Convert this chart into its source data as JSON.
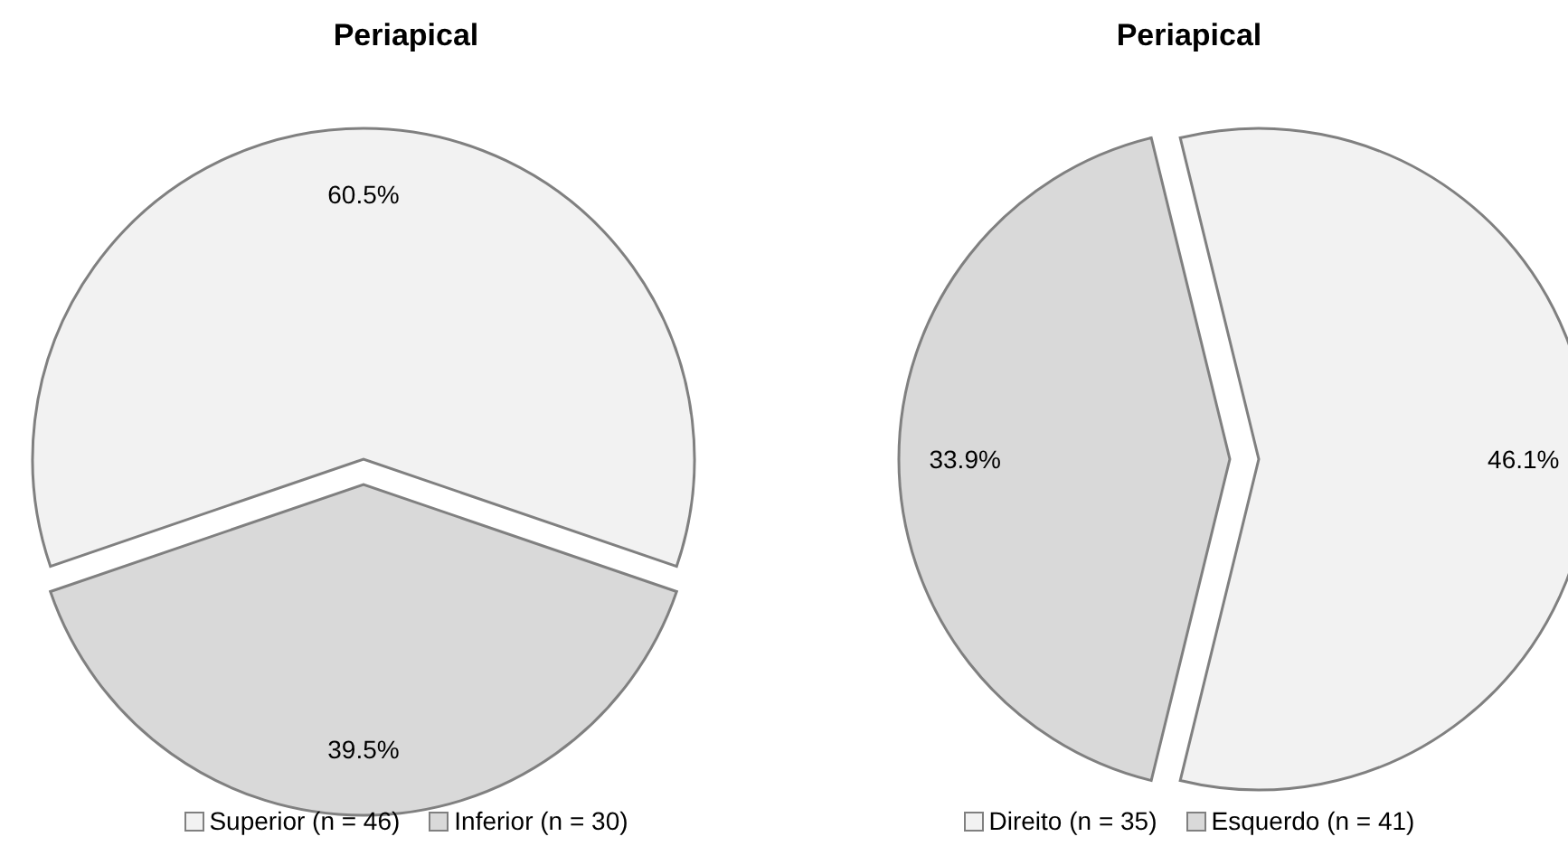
{
  "chart_data": [
    {
      "type": "pie",
      "title": "Periapical",
      "categories": [
        "Superior (n = 46)",
        "Inferior (n = 30)"
      ],
      "values": [
        60.5,
        39.5
      ],
      "colors": [
        "#f2f2f2",
        "#d9d9d9"
      ],
      "value_labels": [
        "60.5%",
        "39.5%"
      ],
      "legend": "bottom"
    },
    {
      "type": "pie",
      "title": "Periapical",
      "categories": [
        "Direito (n = 35)",
        "Esquerdo (n = 41)"
      ],
      "values": [
        46.1,
        33.9
      ],
      "colors": [
        "#f2f2f2",
        "#d9d9d9"
      ],
      "value_labels": [
        "46.1%",
        "33.9%"
      ],
      "legend": "bottom"
    }
  ]
}
